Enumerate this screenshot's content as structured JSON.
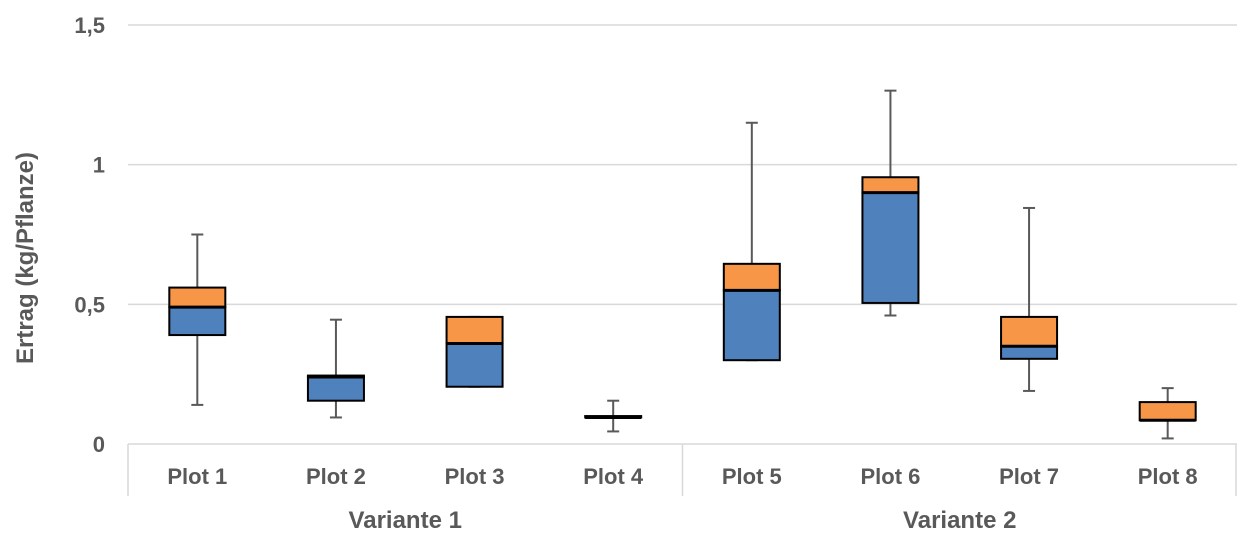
{
  "chart_data": {
    "type": "box",
    "title": "",
    "ylabel": "Ertrag (kg/Pflanze)",
    "xlabel": "",
    "ylim": [
      0,
      1.5
    ],
    "yticks": [
      {
        "value": 0,
        "label": "0"
      },
      {
        "value": 0.5,
        "label": "0,5"
      },
      {
        "value": 1,
        "label": "1"
      },
      {
        "value": 1.5,
        "label": "1,5"
      }
    ],
    "grid": true,
    "categories": [
      "Plot 1",
      "Plot 2",
      "Plot 3",
      "Plot 4",
      "Plot 5",
      "Plot 6",
      "Plot 7",
      "Plot 8"
    ],
    "groups": [
      {
        "label": "Variante 1",
        "categories": [
          "Plot 1",
          "Plot 2",
          "Plot 3",
          "Plot 4"
        ]
      },
      {
        "label": "Variante 2",
        "categories": [
          "Plot 5",
          "Plot 6",
          "Plot 7",
          "Plot 8"
        ]
      }
    ],
    "colors": {
      "lower_box": "#4f81bd",
      "upper_box": "#f79646",
      "whisker": "#595959",
      "grid": "#d9d9d9"
    },
    "boxes": [
      {
        "category": "Plot 1",
        "min": 0.14,
        "q1": 0.39,
        "median": 0.49,
        "q3": 0.56,
        "max": 0.75
      },
      {
        "category": "Plot 2",
        "min": 0.095,
        "q1": 0.155,
        "median": 0.24,
        "q3": 0.245,
        "max": 0.445
      },
      {
        "category": "Plot 3",
        "min": 0.205,
        "q1": 0.205,
        "median": 0.36,
        "q3": 0.455,
        "max": 0.455
      },
      {
        "category": "Plot 4",
        "min": 0.045,
        "q1": 0.095,
        "median": 0.095,
        "q3": 0.1,
        "max": 0.155
      },
      {
        "category": "Plot 5",
        "min": 0.3,
        "q1": 0.3,
        "median": 0.55,
        "q3": 0.645,
        "max": 1.15
      },
      {
        "category": "Plot 6",
        "min": 0.46,
        "q1": 0.505,
        "median": 0.9,
        "q3": 0.955,
        "max": 1.265
      },
      {
        "category": "Plot 7",
        "min": 0.19,
        "q1": 0.305,
        "median": 0.35,
        "q3": 0.455,
        "max": 0.845
      },
      {
        "category": "Plot 8",
        "min": 0.02,
        "q1": 0.085,
        "median": 0.085,
        "q3": 0.15,
        "max": 0.2
      }
    ]
  }
}
